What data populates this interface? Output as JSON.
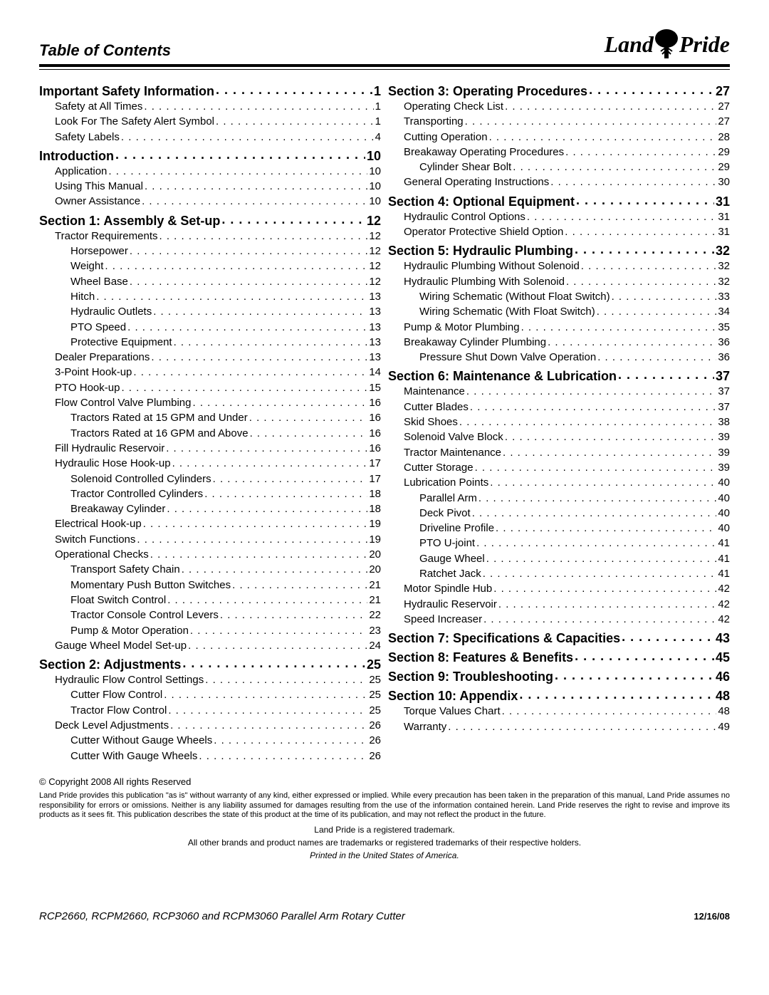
{
  "header": {
    "title": "Table of Contents",
    "logo_left": "Land",
    "logo_right": "Pride"
  },
  "toc": {
    "left": [
      {
        "label": "Important Safety Information",
        "page": "1",
        "level": 0
      },
      {
        "label": "Safety at All Times",
        "page": "1",
        "level": 1
      },
      {
        "label": "Look For The Safety Alert Symbol",
        "page": "1",
        "level": 1
      },
      {
        "label": "Safety Labels",
        "page": "4",
        "level": 1
      },
      {
        "label": "Introduction",
        "page": "10",
        "level": 0
      },
      {
        "label": "Application",
        "page": "10",
        "level": 1
      },
      {
        "label": "Using This Manual",
        "page": "10",
        "level": 1
      },
      {
        "label": "Owner Assistance",
        "page": "10",
        "level": 1
      },
      {
        "label": "Section 1: Assembly & Set-up",
        "page": "12",
        "level": 0
      },
      {
        "label": "Tractor Requirements",
        "page": "12",
        "level": 1
      },
      {
        "label": "Horsepower",
        "page": "12",
        "level": 2
      },
      {
        "label": "Weight",
        "page": "12",
        "level": 2
      },
      {
        "label": "Wheel Base",
        "page": "12",
        "level": 2
      },
      {
        "label": "Hitch",
        "page": "13",
        "level": 2
      },
      {
        "label": "Hydraulic Outlets",
        "page": "13",
        "level": 2
      },
      {
        "label": "PTO Speed",
        "page": "13",
        "level": 2
      },
      {
        "label": "Protective Equipment",
        "page": "13",
        "level": 2
      },
      {
        "label": "Dealer Preparations",
        "page": "13",
        "level": 1
      },
      {
        "label": "3-Point Hook-up",
        "page": "14",
        "level": 1
      },
      {
        "label": "PTO Hook-up",
        "page": "15",
        "level": 1
      },
      {
        "label": "Flow Control Valve Plumbing",
        "page": "16",
        "level": 1
      },
      {
        "label": "Tractors Rated at 15 GPM and Under",
        "page": "16",
        "level": 2
      },
      {
        "label": "Tractors Rated at 16 GPM and Above",
        "page": "16",
        "level": 2
      },
      {
        "label": "Fill Hydraulic Reservoir",
        "page": "16",
        "level": 1
      },
      {
        "label": "Hydraulic Hose Hook-up",
        "page": "17",
        "level": 1
      },
      {
        "label": "Solenoid Controlled Cylinders",
        "page": "17",
        "level": 2
      },
      {
        "label": "Tractor Controlled Cylinders",
        "page": "18",
        "level": 2
      },
      {
        "label": "Breakaway Cylinder",
        "page": "18",
        "level": 2
      },
      {
        "label": "Electrical Hook-up",
        "page": "19",
        "level": 1
      },
      {
        "label": "Switch Functions",
        "page": "19",
        "level": 1
      },
      {
        "label": "Operational Checks",
        "page": "20",
        "level": 1
      },
      {
        "label": "Transport Safety Chain",
        "page": "20",
        "level": 2
      },
      {
        "label": "Momentary Push Button Switches",
        "page": "21",
        "level": 2
      },
      {
        "label": "Float Switch Control",
        "page": "21",
        "level": 2
      },
      {
        "label": "Tractor Console Control Levers",
        "page": "22",
        "level": 2
      },
      {
        "label": "Pump & Motor Operation",
        "page": "23",
        "level": 2
      },
      {
        "label": "Gauge Wheel Model Set-up",
        "page": "24",
        "level": 1
      },
      {
        "label": "Section 2: Adjustments",
        "page": "25",
        "level": 0
      },
      {
        "label": "Hydraulic Flow Control Settings",
        "page": "25",
        "level": 1
      },
      {
        "label": "Cutter Flow Control",
        "page": "25",
        "level": 2
      },
      {
        "label": "Tractor Flow Control",
        "page": "25",
        "level": 2
      },
      {
        "label": "Deck Level Adjustments",
        "page": "26",
        "level": 1
      },
      {
        "label": "Cutter Without Gauge Wheels",
        "page": "26",
        "level": 2
      },
      {
        "label": "Cutter With Gauge Wheels",
        "page": "26",
        "level": 2
      }
    ],
    "right": [
      {
        "label": "Section 3: Operating Procedures",
        "page": "27",
        "level": 0
      },
      {
        "label": "Operating Check List",
        "page": "27",
        "level": 1
      },
      {
        "label": "Transporting",
        "page": "27",
        "level": 1
      },
      {
        "label": "Cutting Operation",
        "page": "28",
        "level": 1
      },
      {
        "label": "Breakaway Operating Procedures",
        "page": "29",
        "level": 1
      },
      {
        "label": "Cylinder Shear Bolt",
        "page": "29",
        "level": 2
      },
      {
        "label": "General Operating Instructions",
        "page": "30",
        "level": 1
      },
      {
        "label": "Section 4: Optional Equipment",
        "page": "31",
        "level": 0
      },
      {
        "label": "Hydraulic Control Options",
        "page": "31",
        "level": 1
      },
      {
        "label": "Operator Protective Shield Option",
        "page": "31",
        "level": 1
      },
      {
        "label": "Section 5: Hydraulic Plumbing",
        "page": "32",
        "level": 0
      },
      {
        "label": "Hydraulic Plumbing Without Solenoid",
        "page": "32",
        "level": 1
      },
      {
        "label": "Hydraulic Plumbing With Solenoid",
        "page": "32",
        "level": 1
      },
      {
        "label": "Wiring Schematic (Without Float Switch)",
        "page": "33",
        "level": 2
      },
      {
        "label": "Wiring Schematic (With Float Switch)",
        "page": "34",
        "level": 2
      },
      {
        "label": "Pump & Motor Plumbing",
        "page": "35",
        "level": 1
      },
      {
        "label": "Breakaway Cylinder Plumbing",
        "page": "36",
        "level": 1
      },
      {
        "label": "Pressure Shut Down Valve Operation",
        "page": "36",
        "level": 2
      },
      {
        "label": "Section 6: Maintenance & Lubrication",
        "page": "37",
        "level": 0
      },
      {
        "label": "Maintenance",
        "page": "37",
        "level": 1
      },
      {
        "label": "Cutter Blades",
        "page": "37",
        "level": 1
      },
      {
        "label": "Skid Shoes",
        "page": "38",
        "level": 1
      },
      {
        "label": "Solenoid Valve Block",
        "page": "39",
        "level": 1
      },
      {
        "label": "Tractor Maintenance",
        "page": "39",
        "level": 1
      },
      {
        "label": "Cutter Storage",
        "page": "39",
        "level": 1
      },
      {
        "label": "Lubrication Points",
        "page": "40",
        "level": 1
      },
      {
        "label": "Parallel Arm",
        "page": "40",
        "level": 2
      },
      {
        "label": "Deck Pivot",
        "page": "40",
        "level": 2
      },
      {
        "label": "Driveline Profile",
        "page": "40",
        "level": 2
      },
      {
        "label": "PTO U-joint",
        "page": "41",
        "level": 2
      },
      {
        "label": "Gauge Wheel",
        "page": "41",
        "level": 2
      },
      {
        "label": "Ratchet Jack",
        "page": "41",
        "level": 2
      },
      {
        "label": "Motor Spindle Hub",
        "page": "42",
        "level": 1
      },
      {
        "label": "Hydraulic Reservoir",
        "page": "42",
        "level": 1
      },
      {
        "label": "Speed Increaser",
        "page": "42",
        "level": 1
      },
      {
        "label": "Section 7: Specifications & Capacities",
        "page": "43",
        "level": 0
      },
      {
        "label": "Section 8: Features & Benefits",
        "page": "45",
        "level": 0
      },
      {
        "label": "Section 9: Troubleshooting",
        "page": "46",
        "level": 0
      },
      {
        "label": "Section 10: Appendix",
        "page": "48",
        "level": 0
      },
      {
        "label": "Torque Values Chart",
        "page": "48",
        "level": 1
      },
      {
        "label": "Warranty",
        "page": "49",
        "level": 1
      }
    ]
  },
  "footer": {
    "copyright": "© Copyright 2008 All rights Reserved",
    "disclaimer": "Land Pride provides this publication \"as is\" without warranty of any kind, either expressed or implied. While every precaution has been taken in the preparation of this manual, Land Pride assumes no responsibility for errors or omissions. Neither is any liability assumed for damages resulting from the use of the information contained herein. Land Pride reserves the right to revise and improve its products as it sees fit. This publication describes the state of this product at the time of its publication, and may not reflect the product in the future.",
    "trademark1": "Land Pride is a registered trademark.",
    "trademark2": "All other brands and product names are trademarks or registered trademarks of their respective holders.",
    "printed": "Printed in the United States of America.",
    "product": "RCP2660, RCPM2660, RCP3060 and RCPM3060 Parallel Arm Rotary Cutter",
    "date": "12/16/08"
  }
}
